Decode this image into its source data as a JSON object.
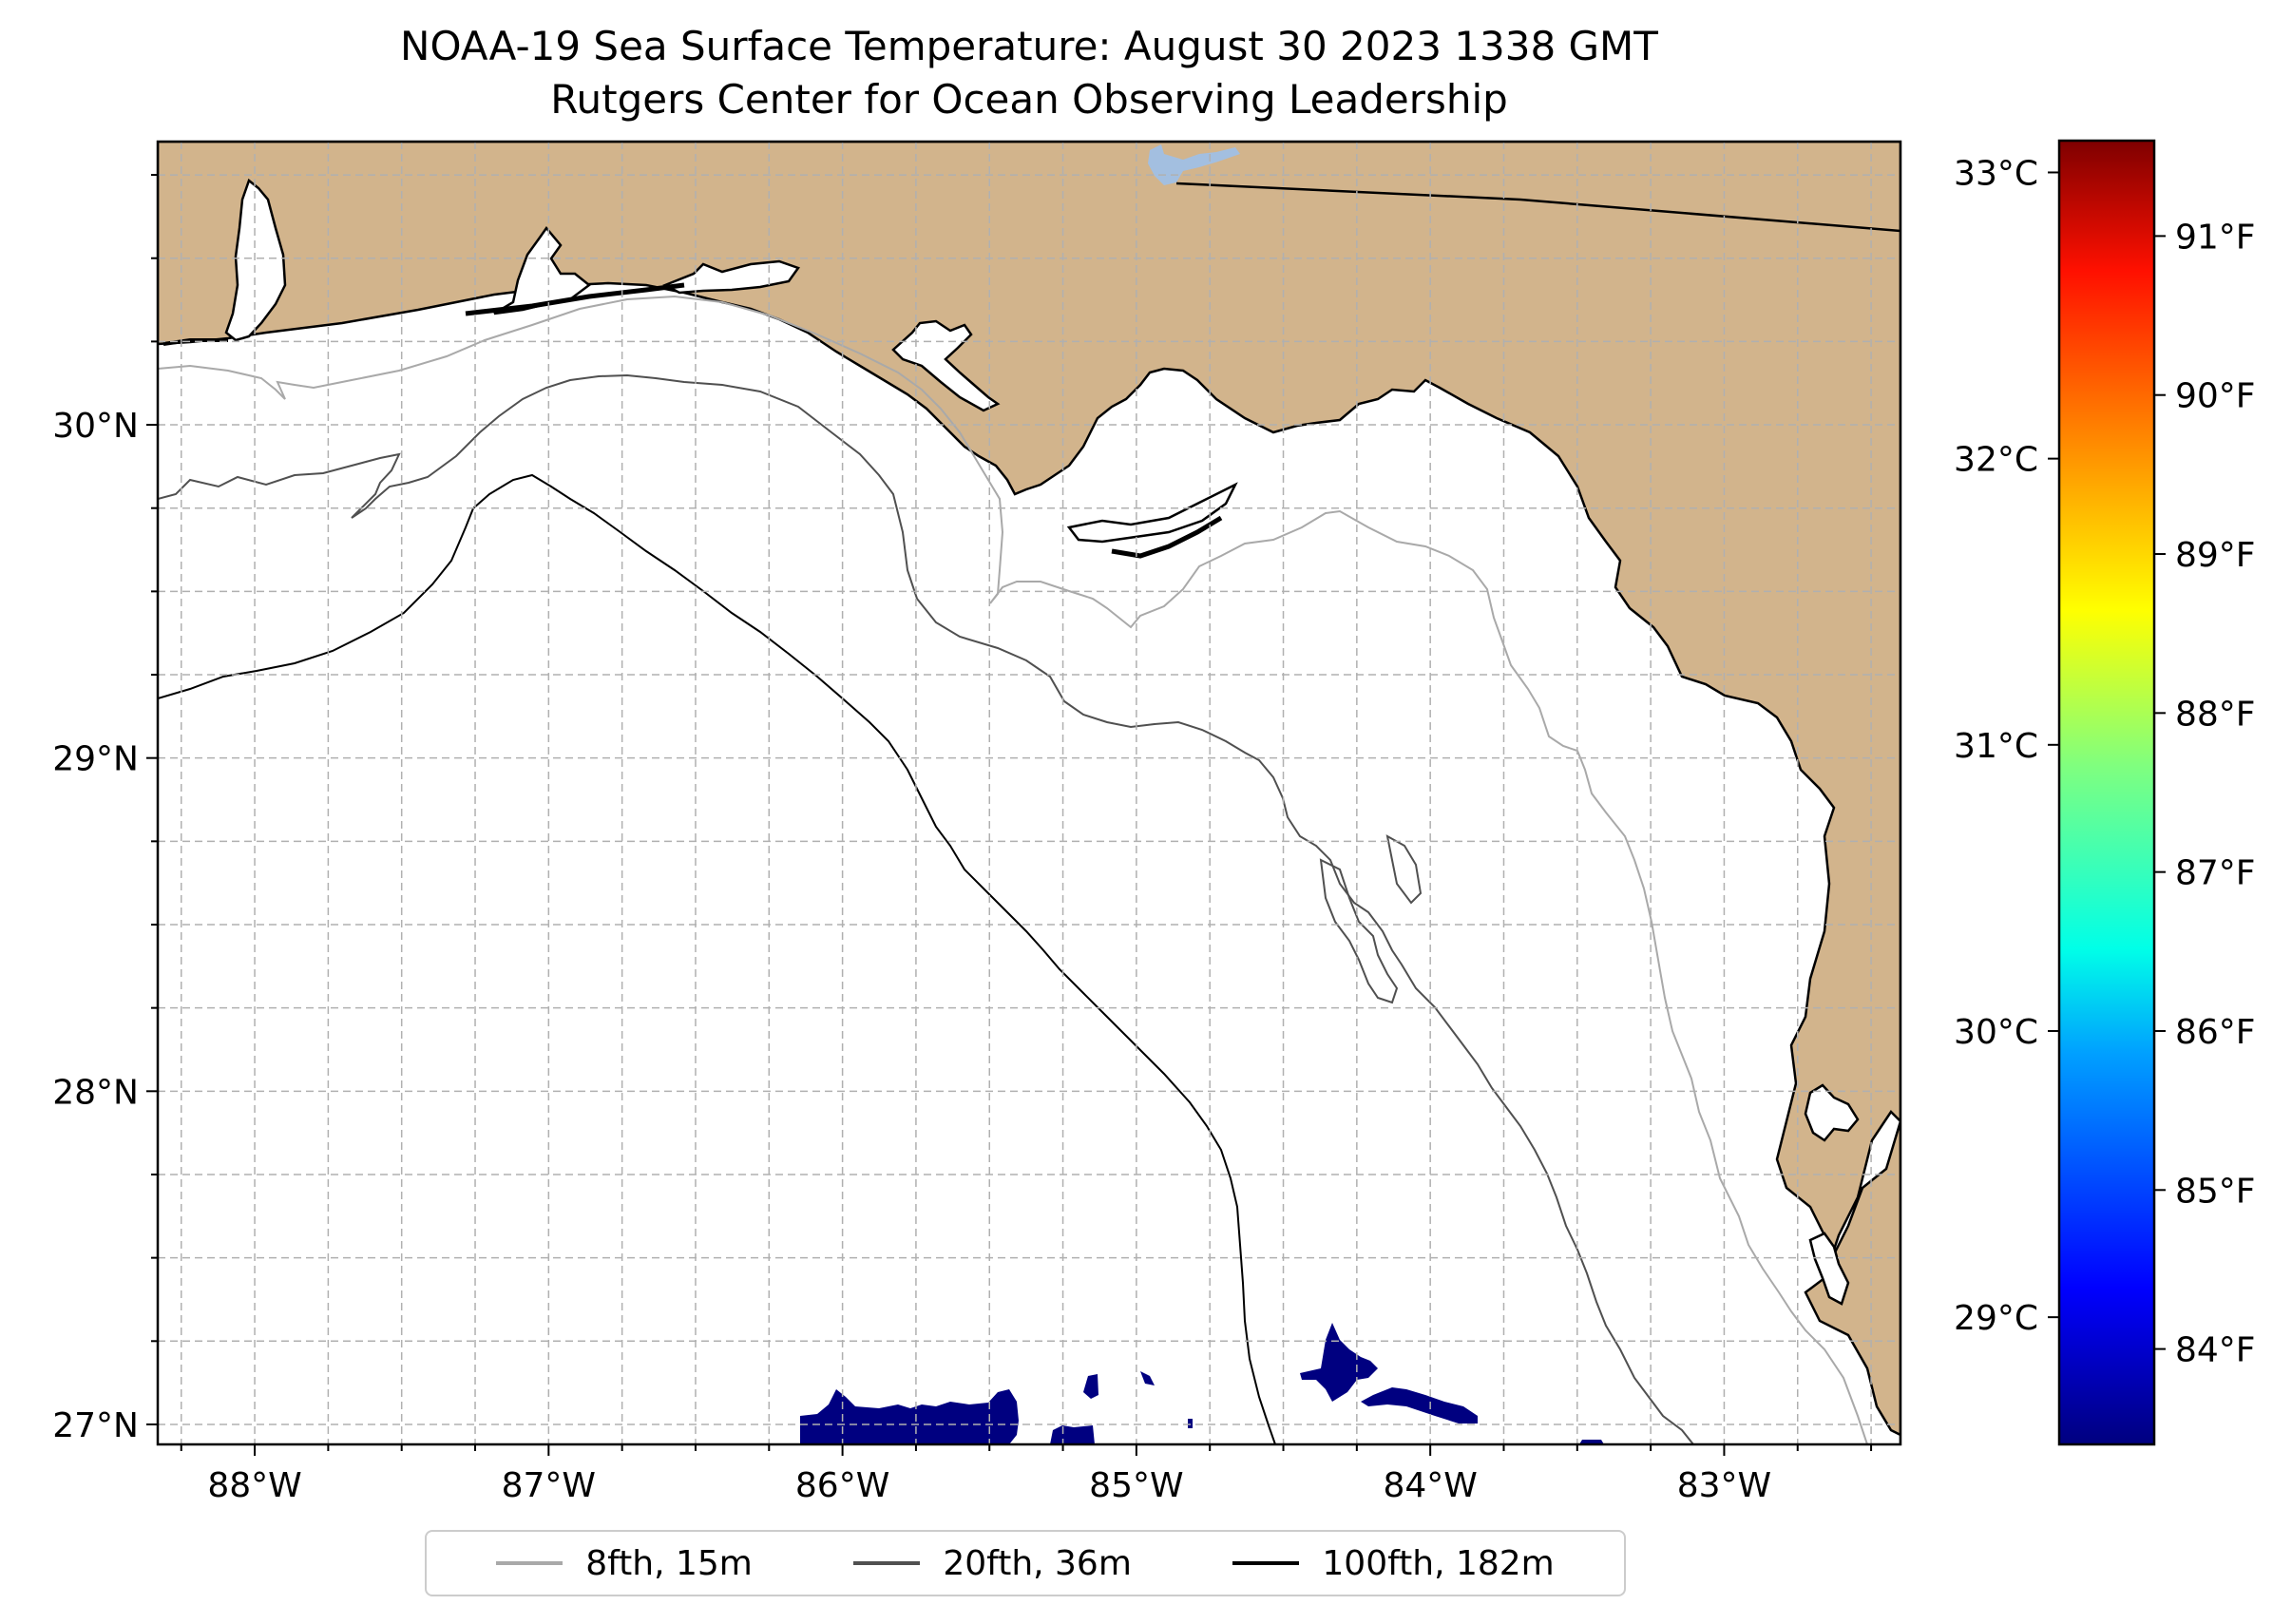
{
  "title": {
    "line1": "NOAA-19 Sea Surface Temperature: August 30 2023 1338 GMT",
    "line2": "Rutgers Center for Ocean Observing Leadership"
  },
  "map": {
    "lon_ticks": [
      "88°W",
      "87°W",
      "86°W",
      "85°W",
      "84°W",
      "83°W"
    ],
    "lat_ticks": [
      "30°N",
      "29°N",
      "28°N",
      "27°N"
    ],
    "lon_range": [
      -88.33,
      -82.4
    ],
    "lat_range": [
      26.94,
      30.85
    ],
    "land_color": "#d2b48c",
    "water_color": "#ffffff",
    "lake_color": "#a3bfe0",
    "cold_pixel_color": "#000080"
  },
  "colorbar": {
    "celsius_ticks": [
      "33°C",
      "32°C",
      "31°C",
      "30°C",
      "29°C"
    ],
    "celsius_values": [
      33,
      32,
      31,
      30,
      29
    ],
    "fahrenheit_ticks": [
      "91°F",
      "90°F",
      "89°F",
      "88°F",
      "87°F",
      "86°F",
      "85°F",
      "84°F"
    ],
    "fahrenheit_values": [
      91,
      90,
      89,
      88,
      87,
      86,
      85,
      84
    ],
    "range_f": [
      83.4,
      91.6
    ],
    "colors": [
      "#00007f",
      "#0000ff",
      "#007fff",
      "#00ffff",
      "#7fff7f",
      "#ffff00",
      "#ff7f00",
      "#ff0000",
      "#7f0000"
    ]
  },
  "legend": {
    "items": [
      {
        "label": "8fth, 15m",
        "color": "#a9a9a9"
      },
      {
        "label": "20fth, 36m",
        "color": "#505050"
      },
      {
        "label": "100fth, 182m",
        "color": "#000000"
      }
    ]
  }
}
